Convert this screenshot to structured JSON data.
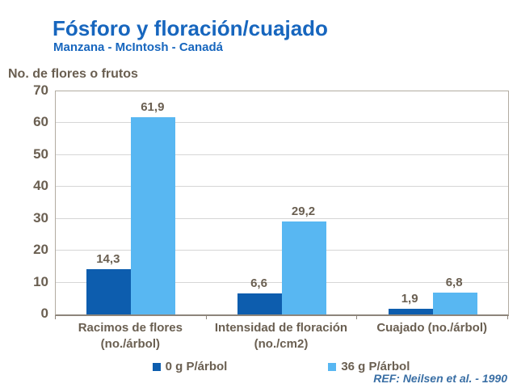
{
  "header": {
    "title": "Fósforo y floración/cuajado",
    "subtitle": "Manzana - McIntosh - Canadá"
  },
  "footer": {
    "ref": "REF: Neilsen et al. - 1990"
  },
  "colors": {
    "title_blue": "#1766be",
    "ref_blue": "#3a6fa5",
    "label_taupe": "#6a5f51",
    "series1_dark_blue": "#0d5dae",
    "series2_light_blue": "#58b7f2",
    "gridline_gray": "#d6d6d6",
    "plot_border_gray": "#b2aba1",
    "axis_line_gray": "#8d857b"
  },
  "chart_data": {
    "type": "bar",
    "title": "Fósforo y floración/cuajado",
    "subtitle": "Manzana - McIntosh - Canadá",
    "ylabel": "No. de flores o frutos",
    "xlabel": "",
    "ylim": [
      0,
      70
    ],
    "yticks": [
      0,
      10,
      20,
      30,
      40,
      50,
      60,
      70
    ],
    "grid": true,
    "legend_position": "bottom",
    "categories": [
      "Racimos de flores\n(no./árbol)",
      "Intensidad de floración\n(no./cm2)",
      "Cuajado (no./árbol)"
    ],
    "series": [
      {
        "name": "0 g P/árbol",
        "color": "#0d5dae",
        "values": [
          14.3,
          6.6,
          1.9
        ],
        "labels": [
          "14,3",
          "6,6",
          "1,9"
        ]
      },
      {
        "name": "36 g P/árbol",
        "color": "#58b7f2",
        "values": [
          61.9,
          29.2,
          6.8
        ],
        "labels": [
          "61,9",
          "29,2",
          "6,8"
        ]
      }
    ]
  }
}
